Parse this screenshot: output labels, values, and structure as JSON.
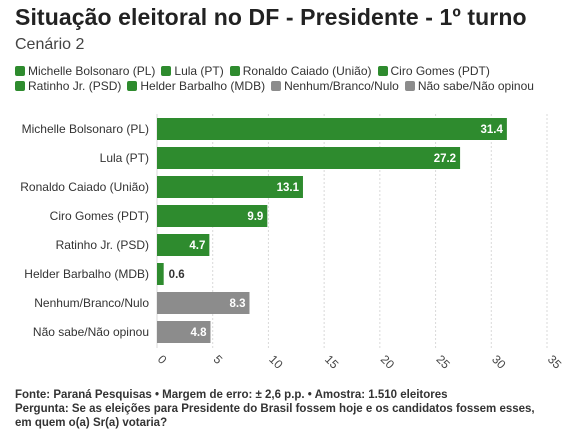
{
  "title": "Situação eleitoral no DF - Presidente - 1º turno",
  "subtitle": "Cenário 2",
  "legend": [
    {
      "label": "Michelle Bolsonaro (PL)",
      "color": "#2e8b2e"
    },
    {
      "label": "Lula (PT)",
      "color": "#2e8b2e"
    },
    {
      "label": "Ronaldo Caiado (União)",
      "color": "#2e8b2e"
    },
    {
      "label": "Ciro Gomes (PDT)",
      "color": "#2e8b2e"
    },
    {
      "label": "Ratinho Jr. (PSD)",
      "color": "#2e8b2e"
    },
    {
      "label": "Helder Barbalho (MDB)",
      "color": "#2e8b2e"
    },
    {
      "label": "Nenhum/Branco/Nulo",
      "color": "#8c8c8c"
    },
    {
      "label": "Não sabe/Não opinou",
      "color": "#8c8c8c"
    }
  ],
  "chart_data": {
    "type": "bar",
    "orientation": "horizontal",
    "categories": [
      "Michelle Bolsonaro (PL)",
      "Lula (PT)",
      "Ronaldo Caiado (União)",
      "Ciro Gomes (PDT)",
      "Ratinho Jr. (PSD)",
      "Helder Barbalho (MDB)",
      "Nenhum/Branco/Nulo",
      "Não sabe/Não opinou"
    ],
    "values": [
      31.4,
      27.2,
      13.1,
      9.9,
      4.7,
      0.6,
      8.3,
      4.8
    ],
    "value_labels": [
      "31.4",
      "27.2",
      "13.1",
      "9.9",
      "4.7",
      "0.6",
      "8.3",
      "4.8"
    ],
    "colors": [
      "#2e8b2e",
      "#2e8b2e",
      "#2e8b2e",
      "#2e8b2e",
      "#2e8b2e",
      "#2e8b2e",
      "#8c8c8c",
      "#8c8c8c"
    ],
    "xlim": [
      0,
      35
    ],
    "xticks": [
      0,
      5,
      10,
      15,
      20,
      25,
      30,
      35
    ],
    "grid": true,
    "legend_position": "top"
  },
  "footer": {
    "source": "Fonte: Paraná Pesquisas • Margem de erro: ± 2,6 p.p. • Amostra: 1.510 eleitores",
    "question_line1": "Pergunta: Se as eleições para Presidente do Brasil fossem hoje e os candidatos fossem esses,",
    "question_line2": "em quem o(a) Sr(a) votaria?"
  }
}
